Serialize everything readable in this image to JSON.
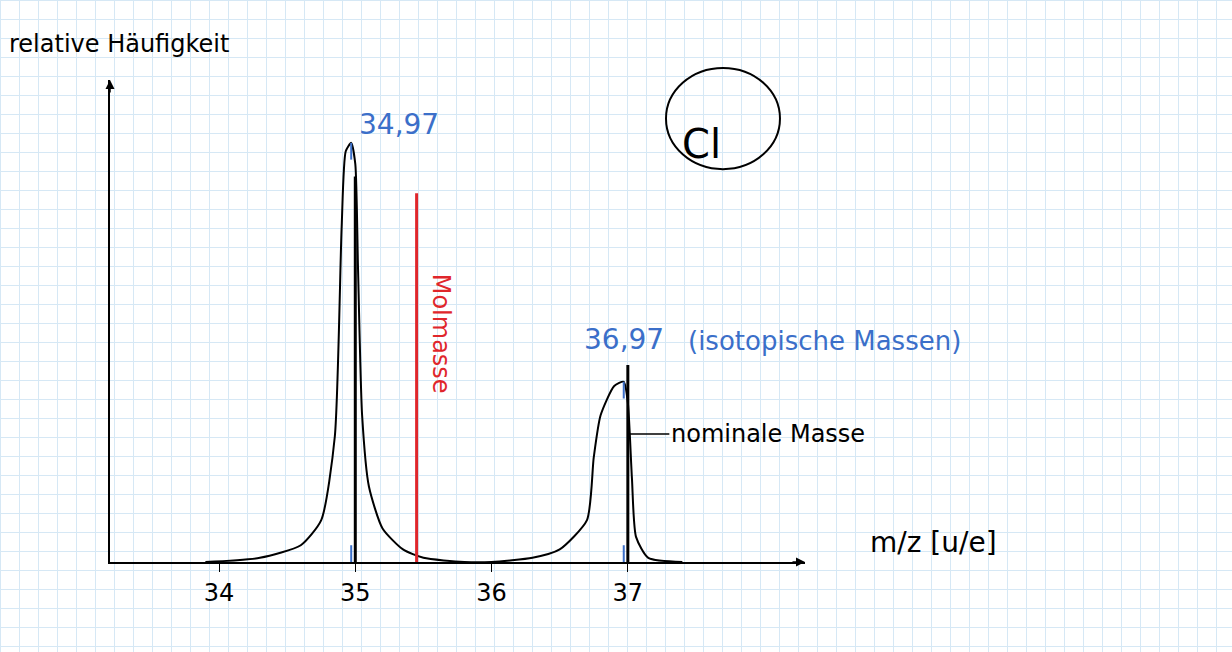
{
  "chart_data": {
    "type": "line",
    "title": "Cl",
    "xlabel": "m/z [u/e]",
    "ylabel": "relative Häufigkeit",
    "x": [
      33.9,
      34.3,
      34.6,
      34.75,
      34.85,
      34.9,
      34.93,
      34.97,
      35.0,
      35.02,
      35.05,
      35.1,
      35.2,
      35.35,
      35.5,
      35.8,
      36.0,
      36.3,
      36.5,
      36.7,
      36.75,
      36.8,
      36.9,
      36.97,
      37.0,
      37.03,
      37.06,
      37.15,
      37.4
    ],
    "values": [
      0,
      1,
      4,
      10,
      30,
      80,
      98,
      100,
      95,
      70,
      35,
      18,
      8,
      3,
      1,
      0,
      0,
      1,
      3,
      10,
      25,
      35,
      42,
      43,
      38,
      20,
      6,
      1,
      0
    ],
    "color": "#000000",
    "xlim": [
      33.2,
      38.3
    ],
    "xticks": [
      34,
      35,
      36,
      37
    ],
    "ylim": [
      0,
      115
    ],
    "tick_labels": "x",
    "nominal_masses": {
      "label": "nominale Masse",
      "x": [
        35,
        37
      ],
      "values": [
        92,
        47
      ],
      "color": "#000000"
    },
    "molar_mass": {
      "label": "Molmasse",
      "x": 35.45,
      "value": 88,
      "color": "#e0262b"
    },
    "isotopic_masses": {
      "label": "(isotopische Massen)",
      "x": [
        34.97,
        36.97
      ],
      "labels": [
        "34,97",
        "36,97"
      ],
      "color": "#3b6fc9"
    }
  }
}
